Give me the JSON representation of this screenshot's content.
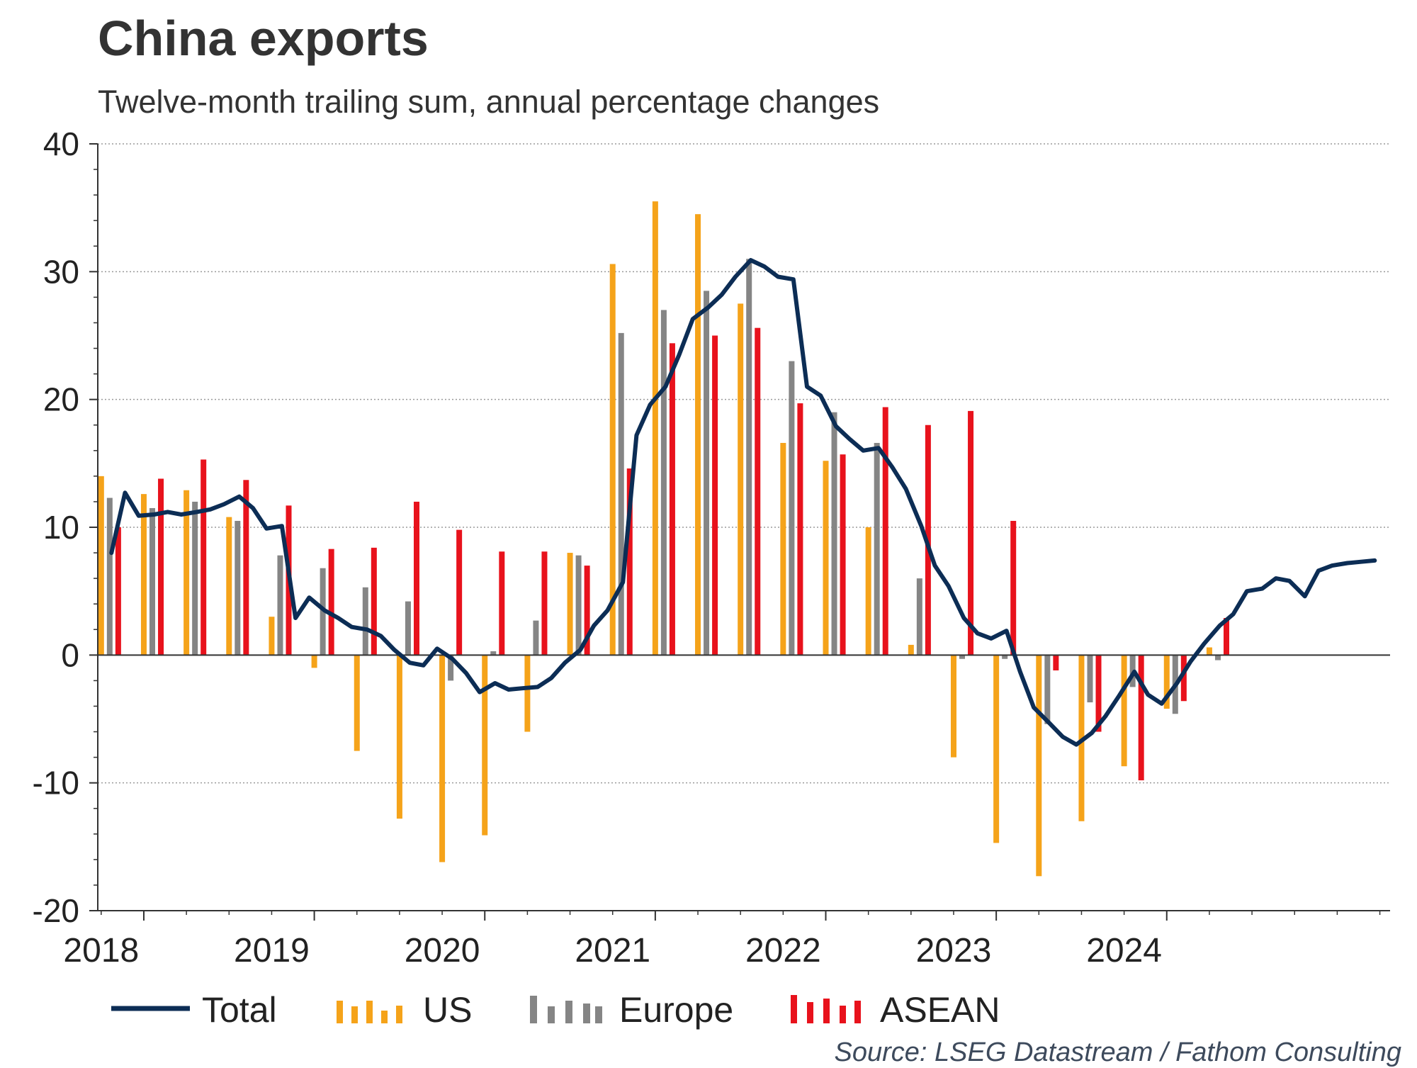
{
  "chart_data": {
    "type": "bar",
    "title": "China exports",
    "subtitle": "Twelve-month trailing sum, annual percentage changes",
    "source": "Source: LSEG Datastream / Fathom Consulting",
    "ylim": [
      -20,
      40
    ],
    "y_ticks": [
      40,
      30,
      20,
      10,
      0,
      -10,
      -20
    ],
    "y_tick_labels": [
      "40",
      "30",
      "20",
      "10",
      "0",
      "-10",
      "-20"
    ],
    "grid": true,
    "x_start": 2017.98,
    "x_end": 2025.56,
    "x_labels": [
      "2018",
      "2019",
      "2020",
      "2021",
      "2022",
      "2023",
      "2024"
    ],
    "x_label_positions": [
      2018.0,
      2019.0,
      2020.0,
      2021.0,
      2022.0,
      2023.0,
      2024.0
    ],
    "x_major_ticks": [
      2018.25,
      2019.25,
      2020.25,
      2021.25,
      2022.25,
      2023.25,
      2024.25
    ],
    "legend": {
      "total": "Total",
      "us": "US",
      "europe": "Europe",
      "asean": "ASEAN"
    },
    "series": [
      {
        "name": "US",
        "color": "#f5a31a",
        "x": [
          2018.0,
          2018.25,
          2018.5,
          2018.75,
          2019.0,
          2019.25,
          2019.5,
          2019.75,
          2020.0,
          2020.25,
          2020.5,
          2020.75,
          2021.0,
          2021.25,
          2021.5,
          2021.75,
          2022.0,
          2022.25,
          2022.5,
          2022.75,
          2023.0,
          2023.25,
          2023.5,
          2023.75,
          2024.0,
          2024.25,
          2024.5
        ],
        "values": [
          14.0,
          12.6,
          12.9,
          10.8,
          3.0,
          -1.0,
          -7.5,
          -12.8,
          -16.2,
          -14.1,
          -6.0,
          8.0,
          30.6,
          35.5,
          34.5,
          27.5,
          16.6,
          15.2,
          10.0,
          0.8,
          -8.0,
          -14.7,
          -17.3,
          -13.0,
          -8.7,
          -4.2,
          0.6
        ]
      },
      {
        "name": "Europe",
        "color": "#858585",
        "x": [
          2018.05,
          2018.3,
          2018.55,
          2018.8,
          2019.05,
          2019.3,
          2019.55,
          2019.8,
          2020.05,
          2020.3,
          2020.55,
          2020.8,
          2021.05,
          2021.3,
          2021.55,
          2021.8,
          2022.05,
          2022.3,
          2022.55,
          2022.8,
          2023.05,
          2023.3,
          2023.55,
          2023.8,
          2024.05,
          2024.3,
          2024.55
        ],
        "values": [
          12.3,
          11.5,
          12.0,
          10.5,
          7.8,
          6.8,
          5.3,
          4.2,
          -2.0,
          0.3,
          2.7,
          7.8,
          25.2,
          27.0,
          28.5,
          31.0,
          23.0,
          19.0,
          16.6,
          6.0,
          -0.3,
          -0.3,
          -5.4,
          -3.7,
          -2.5,
          -4.6,
          -0.4
        ]
      },
      {
        "name": "ASEAN",
        "color": "#e8121c",
        "x": [
          2018.1,
          2018.35,
          2018.6,
          2018.85,
          2019.1,
          2019.35,
          2019.6,
          2019.85,
          2020.1,
          2020.35,
          2020.6,
          2020.85,
          2021.1,
          2021.35,
          2021.6,
          2021.85,
          2022.1,
          2022.35,
          2022.6,
          2022.85,
          2023.1,
          2023.35,
          2023.6,
          2023.85,
          2024.1,
          2024.35,
          2024.6
        ],
        "values": [
          10.0,
          13.8,
          15.3,
          13.7,
          11.7,
          8.3,
          8.4,
          12.0,
          9.8,
          8.1,
          8.1,
          7.0,
          14.6,
          24.4,
          25.0,
          25.6,
          19.7,
          15.7,
          19.4,
          18.0,
          19.1,
          10.5,
          -1.2,
          -6.0,
          -9.8,
          -3.6,
          2.9
        ]
      }
    ],
    "total": {
      "name": "Total",
      "color": "#0c2d55",
      "x": [
        2018.06,
        2018.14,
        2018.22,
        2018.31,
        2018.39,
        2018.47,
        2018.56,
        2018.64,
        2018.72,
        2018.81,
        2018.89,
        2018.97,
        2019.06,
        2019.14,
        2019.22,
        2019.31,
        2019.39,
        2019.47,
        2019.56,
        2019.64,
        2019.72,
        2019.81,
        2019.89,
        2019.97,
        2020.06,
        2020.14,
        2020.22,
        2020.31,
        2020.39,
        2020.47,
        2020.56,
        2020.64,
        2020.72,
        2020.81,
        2020.89,
        2020.97,
        2021.06,
        2021.14,
        2021.22,
        2021.31,
        2021.39,
        2021.47,
        2021.56,
        2021.64,
        2021.72,
        2021.81,
        2021.89,
        2021.97,
        2022.06,
        2022.14,
        2022.22,
        2022.31,
        2022.39,
        2022.47,
        2022.56,
        2022.64,
        2022.72,
        2022.81,
        2022.89,
        2022.97,
        2023.06,
        2023.14,
        2023.22,
        2023.31,
        2023.39,
        2023.47,
        2023.56,
        2023.64,
        2023.72,
        2023.81,
        2023.89,
        2023.97,
        2024.06,
        2024.14,
        2024.22,
        2024.31,
        2024.39,
        2024.47,
        2024.56,
        2024.64,
        2024.72,
        2024.81,
        2024.89,
        2024.97,
        2025.06,
        2025.14,
        2025.22,
        2025.31,
        2025.39,
        2025.47
      ],
      "values": [
        8.0,
        12.7,
        10.9,
        11.0,
        11.2,
        11.0,
        11.2,
        11.4,
        11.8,
        12.4,
        11.5,
        9.9,
        10.1,
        2.9,
        4.5,
        3.5,
        2.9,
        2.2,
        2.0,
        1.5,
        0.4,
        -0.6,
        -0.8,
        0.5,
        -0.3,
        -1.4,
        -2.9,
        -2.2,
        -2.7,
        -2.6,
        -2.5,
        -1.8,
        -0.6,
        0.4,
        2.3,
        3.5,
        5.7,
        17.2,
        19.6,
        21.0,
        23.5,
        26.3,
        27.2,
        28.2,
        29.6,
        30.9,
        30.4,
        29.6,
        29.4,
        21.0,
        20.3,
        17.9,
        16.9,
        16.0,
        16.2,
        14.7,
        13.0,
        10.1,
        7.0,
        5.4,
        2.9,
        1.7,
        1.3,
        1.9,
        -1.3,
        -4.1,
        -5.3,
        -6.4,
        -7.0,
        -6.1,
        -4.8,
        -3.2,
        -1.3,
        -3.1,
        -3.8,
        -2.2,
        -0.5,
        0.9,
        2.3,
        3.2,
        5.0,
        5.2,
        6.0,
        5.8,
        4.6,
        6.6,
        7.0,
        7.2,
        7.3,
        7.4
      ]
    }
  }
}
